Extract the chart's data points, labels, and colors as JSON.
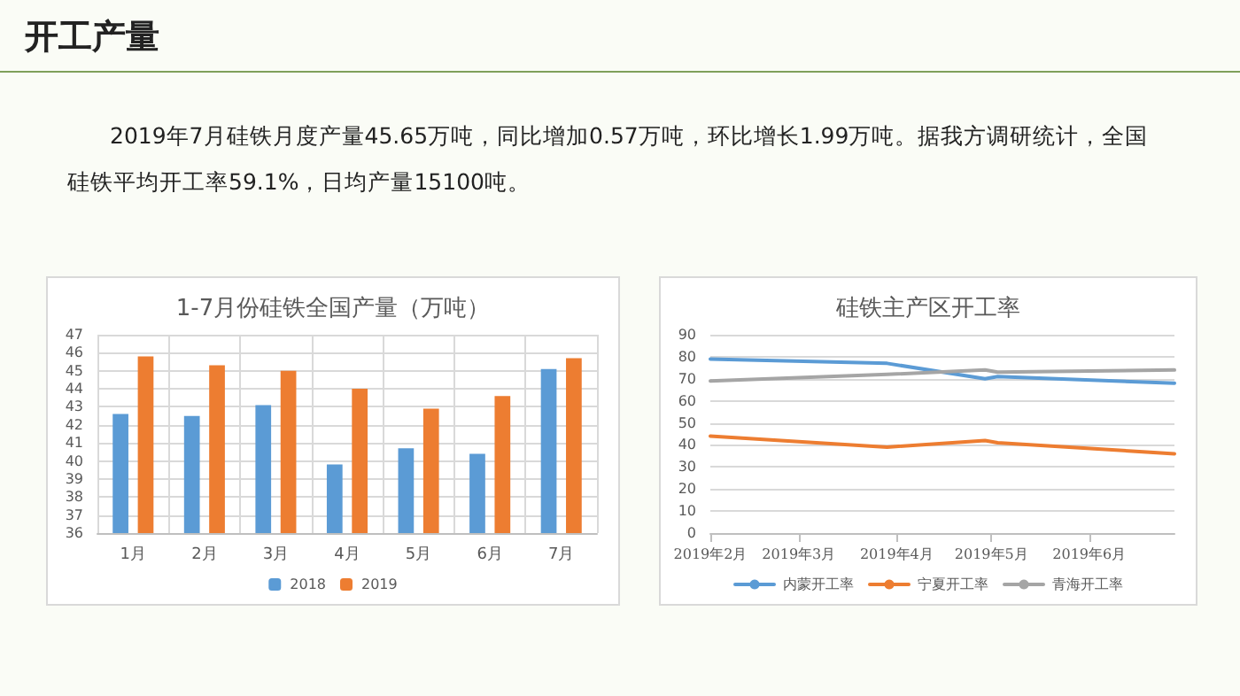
{
  "chart_data": [
    {
      "type": "bar",
      "title": "1-7月份硅铁全国产量（万吨）",
      "annotations": [
        "开工产量",
        "2019年7月硅铁月度产量45.65万吨，同比增加0.57万吨，环比增长1.99万吨。据我方调研统计，全国硅铁平均开工率59.1%，日均产量15100吨。"
      ],
      "categories": [
        "1月",
        "2月",
        "3月",
        "4月",
        "5月",
        "6月",
        "7月"
      ],
      "series": [
        {
          "name": "2018",
          "color": "#5b9bd5",
          "values": [
            42.6,
            42.5,
            43.1,
            39.8,
            40.7,
            40.4,
            45.1
          ]
        },
        {
          "name": "2019",
          "color": "#ed7d31",
          "values": [
            45.8,
            45.3,
            45.0,
            44.0,
            42.9,
            43.6,
            45.7
          ]
        }
      ],
      "ylim": [
        36,
        47
      ],
      "yticks": [
        36,
        37,
        38,
        39,
        40,
        41,
        42,
        43,
        44,
        45,
        46,
        47
      ],
      "grid": true,
      "legend": "bottom"
    },
    {
      "type": "line",
      "title": "硅铁主产区开工率",
      "x": [
        "2019-02-01",
        "2019-03-29",
        "2019-04-29",
        "2019-05-03",
        "2019-06-28"
      ],
      "series": [
        {
          "name": "内蒙开工率",
          "color": "#5b9bd5",
          "values": [
            79,
            77,
            70,
            71,
            68
          ]
        },
        {
          "name": "宁夏开工率",
          "color": "#ed7d31",
          "values": [
            44,
            39,
            42,
            41,
            36
          ]
        },
        {
          "name": "青海开工率",
          "color": "#a5a5a5",
          "values": [
            69,
            72,
            74,
            73,
            74
          ]
        }
      ],
      "xlim": [
        "2019-02-01",
        "2019-06-28"
      ],
      "xticks": [
        {
          "value": "2019-02-01",
          "label": "2019年2月"
        },
        {
          "value": "2019-03-01",
          "label": "2019年3月"
        },
        {
          "value": "2019-04-01",
          "label": "2019年4月"
        },
        {
          "value": "2019-05-01",
          "label": "2019年5月"
        },
        {
          "value": "2019-06-01",
          "label": "2019年6月"
        }
      ],
      "ylim": [
        0,
        90
      ],
      "yticks": [
        0,
        10,
        20,
        30,
        40,
        50,
        60,
        70,
        80,
        90
      ],
      "grid": "y",
      "legend": "bottom",
      "marker": "none",
      "line_style": "solid"
    }
  ]
}
